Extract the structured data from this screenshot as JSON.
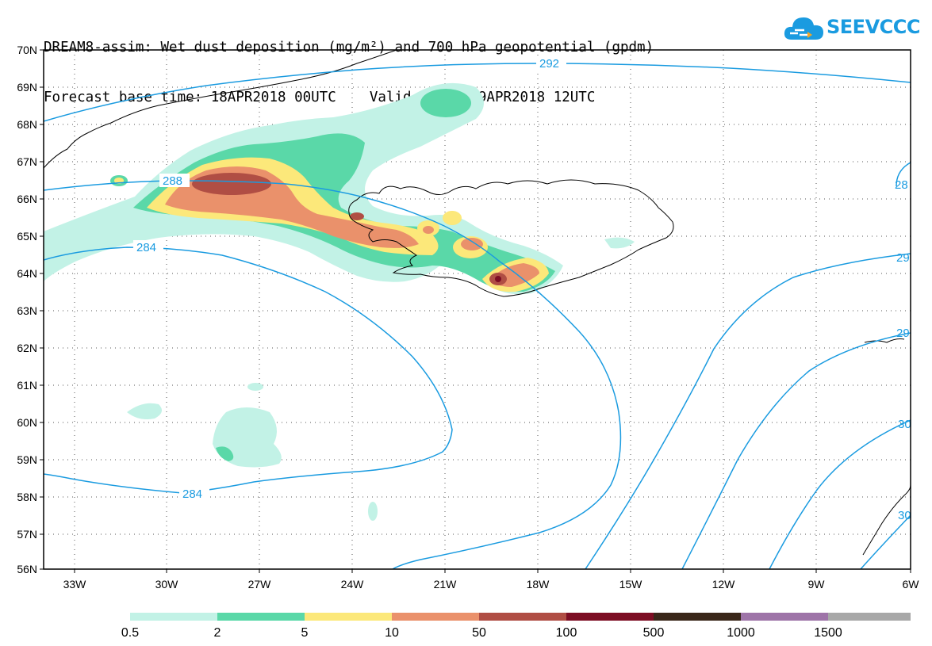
{
  "header": {
    "title_line1": "DREAM8-assim: Wet dust deposition (mg/m²) and 700 hPa geopotential (gpdm)",
    "title_line2": "Forecast base time: 18APR2018 00UTC    Valid time: 19APR2018 12UTC"
  },
  "logo": {
    "text": "SEEVCCC",
    "icon": "cloud-icon"
  },
  "map": {
    "lat_labels": [
      "70N",
      "69N",
      "68N",
      "67N",
      "66N",
      "65N",
      "64N",
      "63N",
      "62N",
      "61N",
      "60N",
      "59N",
      "58N",
      "57N",
      "56N"
    ],
    "lon_labels": [
      "33W",
      "30W",
      "27W",
      "24W",
      "21W",
      "18W",
      "15W",
      "12W",
      "9W",
      "6W"
    ],
    "contour_labels": [
      "292",
      "288",
      "284",
      "284",
      "28",
      "29",
      "29",
      "30",
      "30"
    ],
    "contour_color": "#1a9be0",
    "coast_color": "#000000",
    "grid": "dotted"
  },
  "legend": {
    "labels": [
      "0.5",
      "2",
      "5",
      "10",
      "50",
      "100",
      "500",
      "1000",
      "1500"
    ],
    "colors": [
      "#c2f2e6",
      "#5ad8a8",
      "#fce87a",
      "#ea916b",
      "#b04e44",
      "#7d0e24",
      "#3a271a",
      "#9e74a8",
      "#a8a8a8"
    ]
  }
}
